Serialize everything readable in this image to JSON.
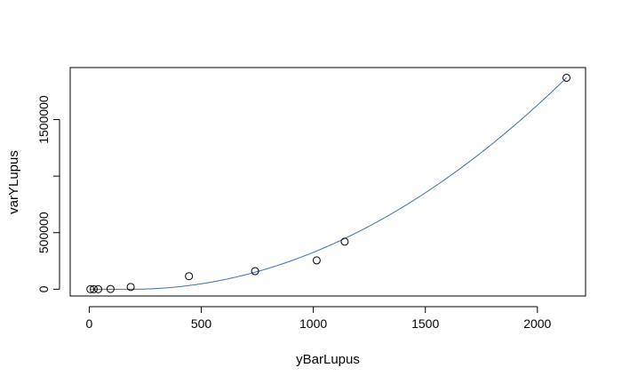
{
  "chart_data": {
    "type": "scatter",
    "title": "",
    "xlabel": "yBarLupus",
    "ylabel": "varYLupus",
    "xlim": [
      -85,
      2215
    ],
    "ylim": [
      -60000,
      1960000
    ],
    "x_ticks": [
      0,
      500,
      1000,
      1500,
      2000
    ],
    "x_tick_labels": [
      "0",
      "500",
      "1000",
      "1500",
      "2000"
    ],
    "y_ticks": [
      0,
      500000,
      1000000,
      1500000
    ],
    "y_tick_labels": [
      "0",
      "500000",
      "",
      "1500000"
    ],
    "grid": false,
    "points": {
      "x": [
        5,
        20,
        40,
        95,
        185,
        445,
        740,
        1015,
        1140,
        2130
      ],
      "y": [
        0,
        0,
        0,
        2000,
        20000,
        115000,
        160000,
        255000,
        420000,
        1870000
      ]
    },
    "fit": {
      "x_start": 190,
      "x_end": 2130,
      "y_at_start": 0,
      "y_at_end": 1870000,
      "exponent": 2
    },
    "colors": {
      "points": "#000000",
      "fit_line": "#3b6ea8",
      "axes": "#000000"
    }
  }
}
